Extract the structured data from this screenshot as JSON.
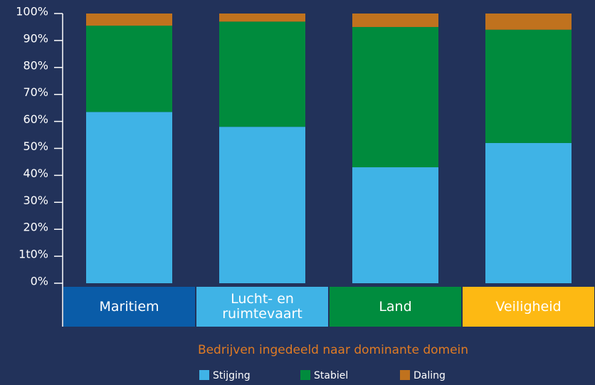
{
  "chart_data": {
    "type": "stacked_bar",
    "categories": [
      "Maritiem",
      "Lucht- en ruimtevaart",
      "Land",
      "Veiligheid"
    ],
    "category_colors": [
      "#0a5ca8",
      "#3fb3e6",
      "#008c3e",
      "#fdb913"
    ],
    "series": [
      {
        "name": "Stijging",
        "color": "#3fb3e6",
        "values": [
          63.5,
          58,
          43,
          52
        ]
      },
      {
        "name": "Stabiel",
        "color": "#008b3d",
        "values": [
          32,
          39,
          52,
          42
        ]
      },
      {
        "name": "Daling",
        "color": "#c0721e",
        "values": [
          4.5,
          3,
          5,
          6
        ]
      }
    ],
    "ylim": [
      0,
      100
    ],
    "yticks": [
      {
        "value": 0,
        "label": "0%"
      },
      {
        "value": 10,
        "label": "1t0%"
      },
      {
        "value": 20,
        "label": "20%"
      },
      {
        "value": 30,
        "label": "30%"
      },
      {
        "value": 40,
        "label": "40%"
      },
      {
        "value": 50,
        "label": "50%"
      },
      {
        "value": 60,
        "label": "60%"
      },
      {
        "value": 70,
        "label": "70%"
      },
      {
        "value": 80,
        "label": "80%"
      },
      {
        "value": 90,
        "label": "90%"
      },
      {
        "value": 100,
        "label": "100%"
      }
    ],
    "xlabel": "Bedrijven ingedeeld naar dominante domein",
    "legend": "bottom"
  }
}
